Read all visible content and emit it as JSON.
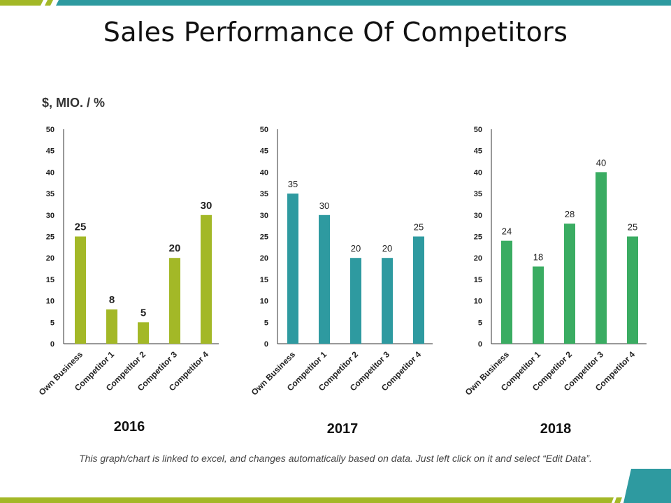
{
  "slide": {
    "title": "Sales Performance Of Competitors",
    "unit_label": "$, MIO. / %",
    "footnote": "This graph/chart is linked to excel, and changes automatically based on data. Just left click on it and select “Edit Data”."
  },
  "colors": {
    "teal_accent": "#2e9aa0",
    "green_accent": "#a3b827"
  },
  "chart_data": [
    {
      "type": "bar",
      "title": "2016",
      "categories": [
        "Own Business",
        "Competitor 1",
        "Competitor 2",
        "Competitor 3",
        "Competitor 4"
      ],
      "values": [
        25,
        8,
        5,
        20,
        30
      ],
      "ylim": [
        0,
        50
      ],
      "yticks": [
        0,
        5,
        10,
        15,
        20,
        25,
        30,
        35,
        40,
        45,
        50
      ],
      "color": "#a3b827",
      "grid": false
    },
    {
      "type": "bar",
      "title": "2017",
      "categories": [
        "Own Business",
        "Competitor 1",
        "Competitor 2",
        "Competitor 3",
        "Competitor 4"
      ],
      "values": [
        35,
        30,
        20,
        20,
        25
      ],
      "ylim": [
        0,
        50
      ],
      "yticks": [
        0,
        5,
        10,
        15,
        20,
        25,
        30,
        35,
        40,
        45,
        50
      ],
      "color": "#2e9aa0",
      "grid": false
    },
    {
      "type": "bar",
      "title": "2018",
      "categories": [
        "Own Business",
        "Competitor 1",
        "Competitor 2",
        "Competitor 3",
        "Competitor 4"
      ],
      "values": [
        24,
        18,
        28,
        40,
        25
      ],
      "ylim": [
        0,
        50
      ],
      "yticks": [
        0,
        5,
        10,
        15,
        20,
        25,
        30,
        35,
        40,
        45,
        50
      ],
      "color": "#3aac62",
      "grid": false
    }
  ]
}
